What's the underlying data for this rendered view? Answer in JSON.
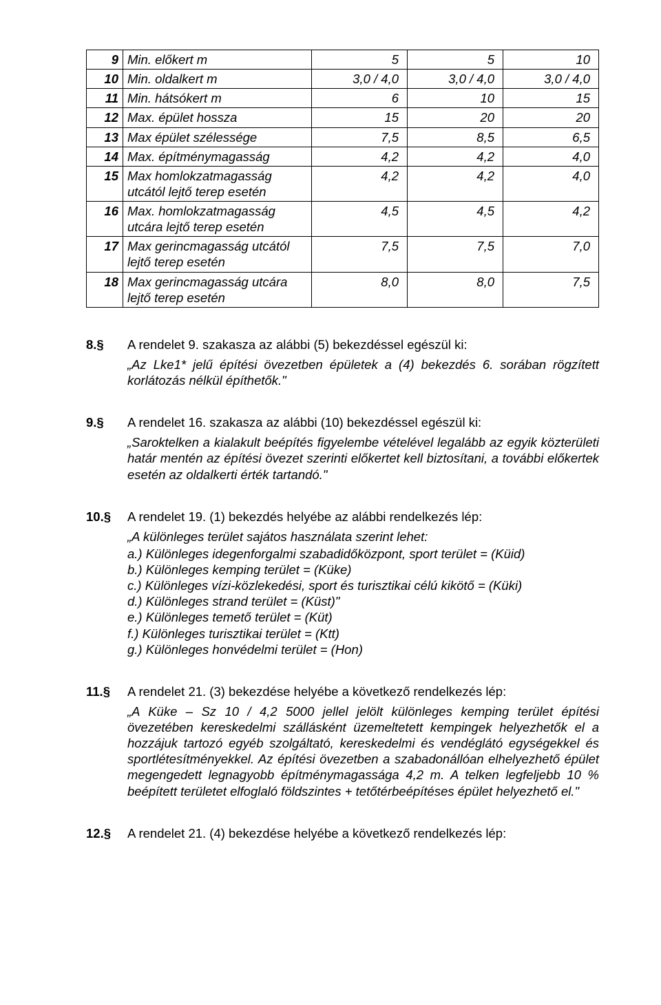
{
  "table": {
    "rows": [
      {
        "n": "9",
        "label": "Min. előkert m",
        "c1": "5",
        "c2": "5",
        "c3": "10"
      },
      {
        "n": "10",
        "label": "Min. oldalkert m",
        "c1": "3,0 / 4,0",
        "c2": "3,0 / 4,0",
        "c3": "3,0 / 4,0"
      },
      {
        "n": "11",
        "label": "Min. hátsókert m",
        "c1": "6",
        "c2": "10",
        "c3": "15"
      },
      {
        "n": "12",
        "label": "Max. épület hossza",
        "c1": "15",
        "c2": "20",
        "c3": "20"
      },
      {
        "n": "13",
        "label": "Max épület szélessége",
        "c1": "7,5",
        "c2": "8,5",
        "c3": "6,5"
      },
      {
        "n": "14",
        "label": "Max. építménymagasság",
        "c1": "4,2",
        "c2": "4,2",
        "c3": "4,0"
      },
      {
        "n": "15",
        "label": "Max homlokzatmagasság utcától lejtő terep esetén",
        "c1": "4,2",
        "c2": "4,2",
        "c3": "4,0"
      },
      {
        "n": "16",
        "label": "Max. homlokzatmagasság utcára lejtő terep esetén",
        "c1": "4,5",
        "c2": "4,5",
        "c3": "4,2"
      },
      {
        "n": "17",
        "label": "Max gerincmagasság utcától lejtő terep esetén",
        "c1": "7,5",
        "c2": "7,5",
        "c3": "7,0"
      },
      {
        "n": "18",
        "label": "Max gerincmagasság utcára lejtő terep esetén",
        "c1": "8,0",
        "c2": "8,0",
        "c3": "7,5"
      }
    ]
  },
  "s8": {
    "num": "8.§",
    "title": "A rendelet 9. szakasza az alábbi (5) bekezdéssel egészül ki:",
    "body": "„Az Lke1* jelű építési övezetben épületek a (4) bekezdés 6. sorában rögzített korlátozás nélkül építhetők.\""
  },
  "s9": {
    "num": "9.§",
    "title": "A rendelet 16. szakasza az alábbi (10) bekezdéssel egészül ki:",
    "body": "„Saroktelken a kialakult beépítés figyelembe vételével legalább az egyik közterületi határ mentén az építési övezet szerinti előkertet kell biztosítani, a további előkertek esetén az oldalkerti érték tartandó.\""
  },
  "s10": {
    "num": "10.§",
    "title": "A rendelet 19. (1) bekezdés helyébe az alábbi rendelkezés lép:",
    "intro": "„A különleges terület sajátos használata szerint lehet:",
    "items": [
      "a.) Különleges idegenforgalmi szabadidőközpont, sport terület = (Küid)",
      "b.) Különleges kemping terület = (Küke)",
      "c.) Különleges vízi-közlekedési, sport és turisztikai célú kikötő = (Küki)",
      "d.) Különleges strand terület = (Küst)\"",
      "e.) Különleges temető terület = (Küt)",
      "f.) Különleges turisztikai terület = (Ktt)",
      "g.) Különleges honvédelmi terület = (Hon)"
    ]
  },
  "s11": {
    "num": "11.§",
    "title": "A rendelet 21. (3) bekezdése helyébe a következő rendelkezés lép:",
    "body": "„A Küke – Sz 10 / 4,2 5000 jellel jelölt különleges kemping terület építési övezetében kereskedelmi szállásként üzemeltetett kempingek helyezhetők el a hozzájuk tartozó egyéb szolgáltató, kereskedelmi és vendéglátó egységekkel és sportlétesítményekkel. Az építési övezetben a szabadonállóan elhelyezhető épület megengedett legnagyobb építménymagassága 4,2 m. A telken legfeljebb 10 % beépített területet elfoglaló földszintes + tetőtérbeépítéses épület helyezhető el.\""
  },
  "s12": {
    "num": "12.§",
    "title": "A rendelet 21. (4) bekezdése helyébe a következő rendelkezés lép:"
  }
}
